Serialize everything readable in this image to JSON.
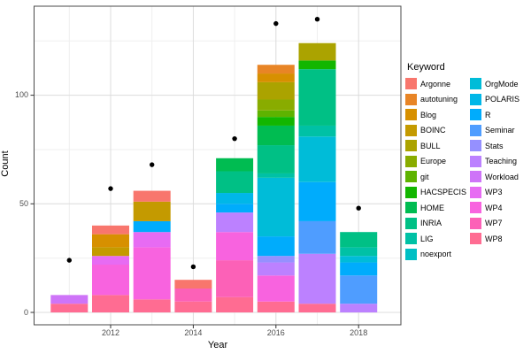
{
  "figure_background": "#ffffff",
  "panel": {
    "border_color": "#4a4a4a",
    "background": "#ffffff",
    "grid_major_color": "#dcdcdc",
    "grid_minor_color": "#efefef"
  },
  "axes": {
    "x_title": "Year",
    "y_title": "Count",
    "x_tick_labels": [
      "2012",
      "2014",
      "2016",
      "2018"
    ],
    "y_tick_labels": [
      "0",
      "50",
      "100"
    ],
    "tick_color": "#333333"
  },
  "legend": {
    "title": "Keyword"
  },
  "chart_data": {
    "type": "bar",
    "stacked": true,
    "title": "",
    "xlabel": "Year",
    "ylabel": "Count",
    "xlim": [
      2010.15,
      2018.85
    ],
    "ylim": [
      -7,
      144
    ],
    "x_major_ticks": [
      2012,
      2014,
      2016,
      2018
    ],
    "x_minor_ticks": [
      2011,
      2013,
      2015,
      2017
    ],
    "y_major_ticks": [
      0,
      50,
      100
    ],
    "y_minor_ticks": [
      25,
      75,
      125
    ],
    "grid": true,
    "legend_position": "right",
    "legend_title": "Keyword",
    "point_color": "#000000",
    "keywords": [
      {
        "name": "Argonne",
        "color": "#F8766D"
      },
      {
        "name": "autotuning",
        "color": "#E88526"
      },
      {
        "name": "Blog",
        "color": "#D79000"
      },
      {
        "name": "BOINC",
        "color": "#C49A00"
      },
      {
        "name": "BULL",
        "color": "#ABA300"
      },
      {
        "name": "Europe",
        "color": "#89AC00"
      },
      {
        "name": "git",
        "color": "#5EB300"
      },
      {
        "name": "HACSPECIS",
        "color": "#12B600"
      },
      {
        "name": "HOME",
        "color": "#00BC51"
      },
      {
        "name": "INRIA",
        "color": "#00C085"
      },
      {
        "name": "LIG",
        "color": "#00C1A5"
      },
      {
        "name": "noexport",
        "color": "#00BFC4"
      },
      {
        "name": "OrgMode",
        "color": "#00BCD8"
      },
      {
        "name": "POLARIS",
        "color": "#00B7E8"
      },
      {
        "name": "R",
        "color": "#00ACFC"
      },
      {
        "name": "Seminar",
        "color": "#4F9DFF"
      },
      {
        "name": "Stats",
        "color": "#9590FF"
      },
      {
        "name": "Teaching",
        "color": "#BC81FF"
      },
      {
        "name": "Workload",
        "color": "#CE74F8"
      },
      {
        "name": "WP3",
        "color": "#E76BF3"
      },
      {
        "name": "WP4",
        "color": "#F863DF"
      },
      {
        "name": "WP7",
        "color": "#FC61B7"
      },
      {
        "name": "WP8",
        "color": "#FF6C92"
      }
    ],
    "legend_column_split": 12,
    "years": [
      2011,
      2012,
      2013,
      2014,
      2015,
      2016,
      2017,
      2018
    ],
    "bars": [
      {
        "year": 2011,
        "total": 8,
        "segments": [
          {
            "keyword": "WP8",
            "value": 4
          },
          {
            "keyword": "Workload",
            "value": 4
          }
        ]
      },
      {
        "year": 2012,
        "total": 40,
        "segments": [
          {
            "keyword": "WP8",
            "value": 8
          },
          {
            "keyword": "WP4",
            "value": 14
          },
          {
            "keyword": "WP3",
            "value": 4
          },
          {
            "keyword": "BOINC",
            "value": 4
          },
          {
            "keyword": "Blog",
            "value": 6
          },
          {
            "keyword": "Argonne",
            "value": 4
          }
        ]
      },
      {
        "year": 2013,
        "total": 56,
        "segments": [
          {
            "keyword": "WP8",
            "value": 6
          },
          {
            "keyword": "WP4",
            "value": 24
          },
          {
            "keyword": "WP3",
            "value": 7
          },
          {
            "keyword": "R",
            "value": 5
          },
          {
            "keyword": "BOINC",
            "value": 9
          },
          {
            "keyword": "Argonne",
            "value": 5
          }
        ]
      },
      {
        "year": 2014,
        "total": 15,
        "segments": [
          {
            "keyword": "WP8",
            "value": 5
          },
          {
            "keyword": "WP7",
            "value": 6
          },
          {
            "keyword": "Argonne",
            "value": 4
          }
        ]
      },
      {
        "year": 2015,
        "total": 71,
        "segments": [
          {
            "keyword": "WP8",
            "value": 7
          },
          {
            "keyword": "WP7",
            "value": 17
          },
          {
            "keyword": "WP4",
            "value": 13
          },
          {
            "keyword": "Teaching",
            "value": 9
          },
          {
            "keyword": "R",
            "value": 4
          },
          {
            "keyword": "POLARIS",
            "value": 5
          },
          {
            "keyword": "INRIA",
            "value": 10
          },
          {
            "keyword": "HOME",
            "value": 6
          }
        ]
      },
      {
        "year": 2016,
        "total": 114,
        "segments": [
          {
            "keyword": "WP8",
            "value": 5
          },
          {
            "keyword": "WP4",
            "value": 12
          },
          {
            "keyword": "Teaching",
            "value": 6
          },
          {
            "keyword": "Stats",
            "value": 3
          },
          {
            "keyword": "R",
            "value": 9
          },
          {
            "keyword": "OrgMode",
            "value": 27
          },
          {
            "keyword": "LIG",
            "value": 2
          },
          {
            "keyword": "INRIA",
            "value": 13
          },
          {
            "keyword": "HOME",
            "value": 9
          },
          {
            "keyword": "HACSPECIS",
            "value": 4
          },
          {
            "keyword": "git",
            "value": 3
          },
          {
            "keyword": "Europe",
            "value": 5
          },
          {
            "keyword": "BULL",
            "value": 8
          },
          {
            "keyword": "Blog",
            "value": 4
          },
          {
            "keyword": "autotuning",
            "value": 4
          }
        ]
      },
      {
        "year": 2017,
        "total": 124,
        "segments": [
          {
            "keyword": "WP8",
            "value": 4
          },
          {
            "keyword": "Teaching",
            "value": 23
          },
          {
            "keyword": "Seminar",
            "value": 15
          },
          {
            "keyword": "R",
            "value": 18
          },
          {
            "keyword": "OrgMode",
            "value": 21
          },
          {
            "keyword": "LIG",
            "value": 5
          },
          {
            "keyword": "INRIA",
            "value": 26
          },
          {
            "keyword": "HACSPECIS",
            "value": 4
          },
          {
            "keyword": "BULL",
            "value": 8
          }
        ]
      },
      {
        "year": 2018,
        "total": 37,
        "segments": [
          {
            "keyword": "Teaching",
            "value": 4
          },
          {
            "keyword": "Seminar",
            "value": 13
          },
          {
            "keyword": "R",
            "value": 6
          },
          {
            "keyword": "OrgMode",
            "value": 3
          },
          {
            "keyword": "LIG",
            "value": 4
          },
          {
            "keyword": "INRIA",
            "value": 7
          }
        ]
      }
    ],
    "points": {
      "description": "black total dots",
      "values": [
        {
          "year": 2011,
          "count": 24
        },
        {
          "year": 2012,
          "count": 57
        },
        {
          "year": 2013,
          "count": 68
        },
        {
          "year": 2014,
          "count": 21
        },
        {
          "year": 2015,
          "count": 80
        },
        {
          "year": 2016,
          "count": 133
        },
        {
          "year": 2017,
          "count": 135
        },
        {
          "year": 2018,
          "count": 48
        }
      ]
    }
  }
}
